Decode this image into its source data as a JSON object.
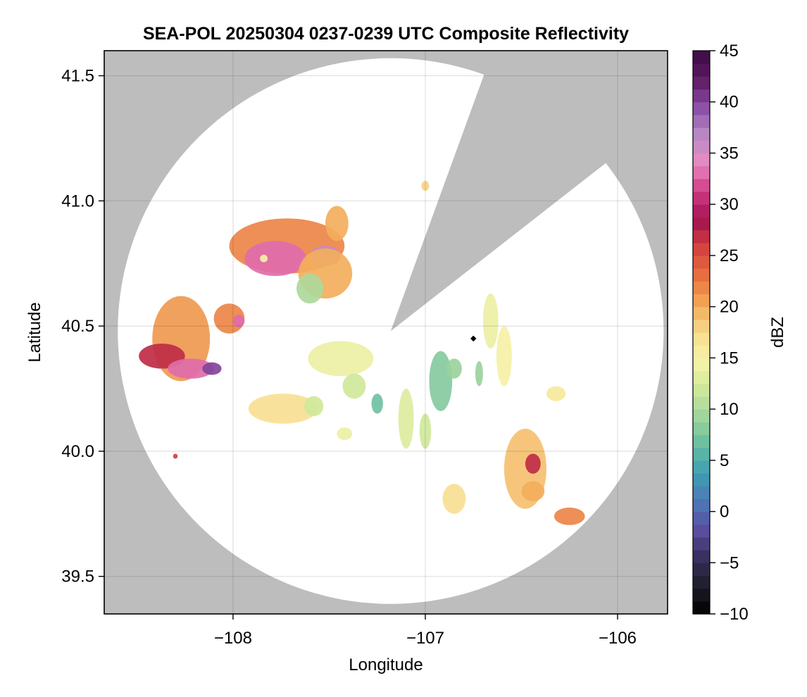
{
  "chart_data": {
    "type": "heatmap",
    "title": "SEA-POL 20250304 0237-0239 UTC Composite Reflectivity",
    "xlabel": "Longitude",
    "ylabel": "Latitude",
    "xlim": [
      -108.67,
      -105.74
    ],
    "ylim": [
      39.35,
      41.6
    ],
    "xticks": [
      -108,
      -107,
      -106
    ],
    "xtick_labels": [
      "−108",
      "−107",
      "−106"
    ],
    "yticks": [
      39.5,
      40.0,
      40.5,
      41.0,
      41.5
    ],
    "ytick_labels": [
      "39.5",
      "40.0",
      "40.5",
      "41.0",
      "41.5"
    ],
    "grid": true,
    "background_color": "#bdbdbd",
    "coverage_color": "#ffffff",
    "radar_site": {
      "lon": -107.18,
      "lat": 40.48
    },
    "radar_range_lat_deg": 1.09,
    "blocked_sector": {
      "from_bearing_deg": 20,
      "to_bearing_deg": 52
    },
    "marker": {
      "lon": -106.75,
      "lat": 40.45,
      "color": "#000000"
    },
    "colorbar": {
      "label": "dBZ",
      "min": -10,
      "max": 45,
      "step": 1.25,
      "ticks": [
        -10,
        -5,
        0,
        5,
        10,
        15,
        20,
        25,
        30,
        35,
        40,
        45
      ],
      "tick_labels": [
        "−10",
        "−5",
        "0",
        "5",
        "10",
        "15",
        "20",
        "25",
        "30",
        "35",
        "40",
        "45"
      ],
      "colormap": [
        "#000000",
        "#1d1d2b",
        "#3a2f5c",
        "#5a4ea0",
        "#4c78b8",
        "#3e9fb0",
        "#66bda2",
        "#9fd49b",
        "#cfe89a",
        "#f5f3a8",
        "#f7dc8d",
        "#f3a957",
        "#e7703f",
        "#d6423f",
        "#a3124f",
        "#cf3a84",
        "#e88ac1",
        "#b98ac6",
        "#8a4fa6",
        "#5e1a63",
        "#3d0a45"
      ]
    },
    "echo_cells": [
      {
        "lon": -107.72,
        "lat": 40.82,
        "rlon": 0.3,
        "rlat": 0.11,
        "dbz": 22
      },
      {
        "lon": -107.78,
        "lat": 40.77,
        "rlon": 0.16,
        "rlat": 0.07,
        "dbz": 33
      },
      {
        "lon": -107.52,
        "lat": 40.78,
        "rlon": 0.08,
        "rlat": 0.04,
        "dbz": 36
      },
      {
        "lon": -107.52,
        "lat": 40.71,
        "rlon": 0.14,
        "rlat": 0.1,
        "dbz": 20
      },
      {
        "lon": -107.6,
        "lat": 40.65,
        "rlon": 0.07,
        "rlat": 0.06,
        "dbz": 10
      },
      {
        "lon": -107.46,
        "lat": 40.91,
        "rlon": 0.06,
        "rlat": 0.07,
        "dbz": 20
      },
      {
        "lon": -108.27,
        "lat": 40.45,
        "rlon": 0.15,
        "rlat": 0.17,
        "dbz": 21
      },
      {
        "lon": -108.37,
        "lat": 40.38,
        "rlon": 0.12,
        "rlat": 0.05,
        "dbz": 27
      },
      {
        "lon": -108.22,
        "lat": 40.33,
        "rlon": 0.12,
        "rlat": 0.04,
        "dbz": 33
      },
      {
        "lon": -108.11,
        "lat": 40.33,
        "rlon": 0.05,
        "rlat": 0.025,
        "dbz": 40
      },
      {
        "lon": -108.02,
        "lat": 40.53,
        "rlon": 0.08,
        "rlat": 0.06,
        "dbz": 22
      },
      {
        "lon": -107.97,
        "lat": 40.52,
        "rlon": 0.03,
        "rlat": 0.025,
        "dbz": 33
      },
      {
        "lon": -107.44,
        "lat": 40.37,
        "rlon": 0.17,
        "rlat": 0.07,
        "dbz": 14
      },
      {
        "lon": -107.37,
        "lat": 40.26,
        "rlon": 0.06,
        "rlat": 0.05,
        "dbz": 12
      },
      {
        "lon": -107.74,
        "lat": 40.17,
        "rlon": 0.18,
        "rlat": 0.06,
        "dbz": 17
      },
      {
        "lon": -107.58,
        "lat": 40.18,
        "rlon": 0.05,
        "rlat": 0.04,
        "dbz": 12
      },
      {
        "lon": -107.25,
        "lat": 40.19,
        "rlon": 0.03,
        "rlat": 0.04,
        "dbz": 7
      },
      {
        "lon": -107.42,
        "lat": 40.07,
        "rlon": 0.04,
        "rlat": 0.025,
        "dbz": 14
      },
      {
        "lon": -107.1,
        "lat": 40.13,
        "rlon": 0.04,
        "rlat": 0.12,
        "dbz": 13
      },
      {
        "lon": -107.0,
        "lat": 40.08,
        "rlon": 0.03,
        "rlat": 0.07,
        "dbz": 12
      },
      {
        "lon": -106.92,
        "lat": 40.28,
        "rlon": 0.06,
        "rlat": 0.12,
        "dbz": 8
      },
      {
        "lon": -106.85,
        "lat": 40.33,
        "rlon": 0.04,
        "rlat": 0.04,
        "dbz": 9
      },
      {
        "lon": -106.66,
        "lat": 40.52,
        "rlon": 0.04,
        "rlat": 0.11,
        "dbz": 14
      },
      {
        "lon": -106.59,
        "lat": 40.38,
        "rlon": 0.04,
        "rlat": 0.12,
        "dbz": 15
      },
      {
        "lon": -106.72,
        "lat": 40.31,
        "rlon": 0.02,
        "rlat": 0.05,
        "dbz": 9
      },
      {
        "lon": -106.48,
        "lat": 39.93,
        "rlon": 0.11,
        "rlat": 0.16,
        "dbz": 19
      },
      {
        "lon": -106.44,
        "lat": 39.95,
        "rlon": 0.04,
        "rlat": 0.04,
        "dbz": 27
      },
      {
        "lon": -106.44,
        "lat": 39.84,
        "rlon": 0.06,
        "rlat": 0.04,
        "dbz": 20
      },
      {
        "lon": -106.85,
        "lat": 39.81,
        "rlon": 0.06,
        "rlat": 0.06,
        "dbz": 17
      },
      {
        "lon": -106.25,
        "lat": 39.74,
        "rlon": 0.08,
        "rlat": 0.035,
        "dbz": 22
      },
      {
        "lon": -106.32,
        "lat": 40.23,
        "rlon": 0.05,
        "rlat": 0.03,
        "dbz": 16
      },
      {
        "lon": -107.0,
        "lat": 41.06,
        "rlon": 0.02,
        "rlat": 0.02,
        "dbz": 18
      },
      {
        "lon": -107.84,
        "lat": 40.77,
        "rlon": 0.02,
        "rlat": 0.015,
        "dbz": 15
      },
      {
        "lon": -108.3,
        "lat": 39.98,
        "rlon": 0.012,
        "rlat": 0.01,
        "dbz": 26
      }
    ]
  }
}
